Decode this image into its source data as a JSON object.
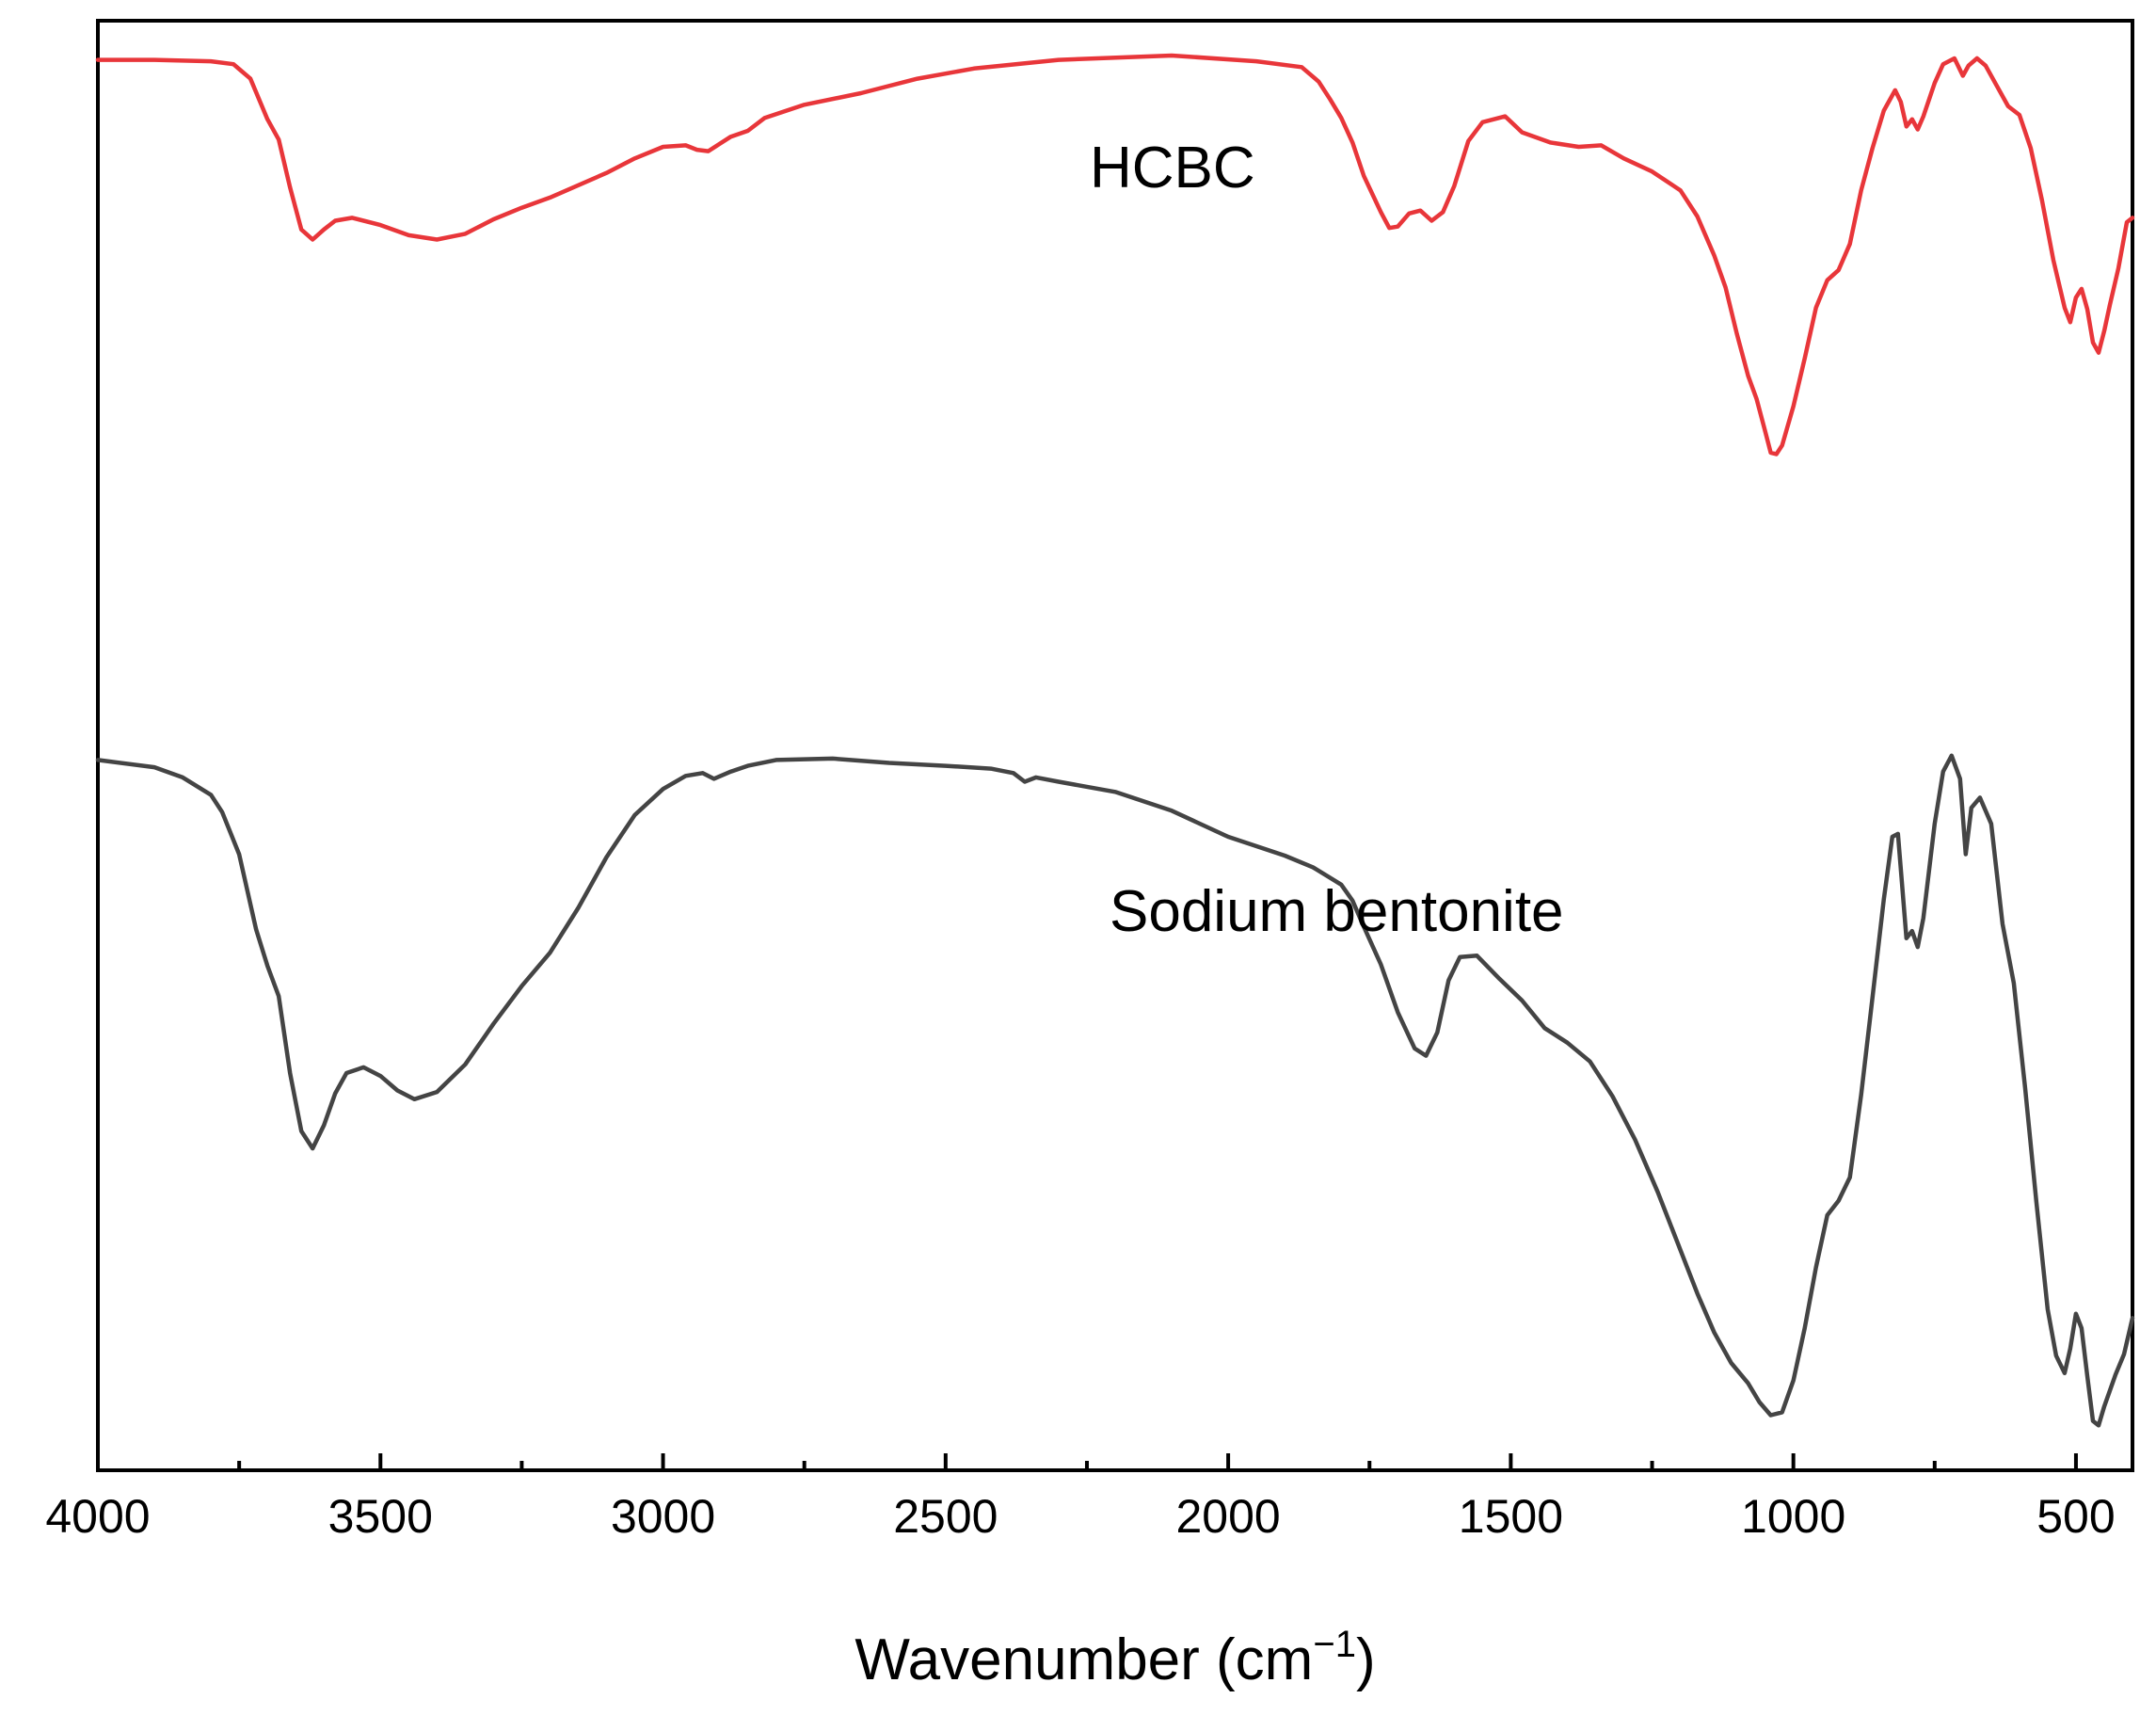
{
  "chart_data": {
    "type": "line",
    "xlabel": "Wavenumber (cm",
    "xlabel_superscript": "−1",
    "xlabel_suffix": ")",
    "ylabel": "",
    "xlim": [
      4000,
      400
    ],
    "x_reversed": true,
    "ylim": [
      0,
      100
    ],
    "y_ticks_visible": false,
    "grid": false,
    "legend": "none",
    "x_ticks": [
      4000,
      3500,
      3000,
      2500,
      2000,
      1500,
      1000,
      500
    ],
    "x_tick_labels": [
      "4000",
      "3500",
      "3000",
      "2500",
      "2000",
      "1500",
      "1000",
      "500"
    ],
    "x_minor_ticks": [
      3750,
      3250,
      2750,
      2250,
      1750,
      1250,
      750
    ],
    "series": [
      {
        "name": "HCBC",
        "color": "#e8363a",
        "points": [
          [
            4000,
            97.3
          ],
          [
            3900,
            97.3
          ],
          [
            3800,
            97.2
          ],
          [
            3760,
            97.0
          ],
          [
            3730,
            96.0
          ],
          [
            3700,
            93.2
          ],
          [
            3680,
            91.8
          ],
          [
            3660,
            88.5
          ],
          [
            3640,
            85.6
          ],
          [
            3620,
            84.9
          ],
          [
            3600,
            85.6
          ],
          [
            3580,
            86.2
          ],
          [
            3550,
            86.4
          ],
          [
            3500,
            85.9
          ],
          [
            3450,
            85.2
          ],
          [
            3400,
            84.9
          ],
          [
            3350,
            85.3
          ],
          [
            3300,
            86.3
          ],
          [
            3250,
            87.1
          ],
          [
            3200,
            87.8
          ],
          [
            3100,
            89.5
          ],
          [
            3050,
            90.5
          ],
          [
            3000,
            91.3
          ],
          [
            2960,
            91.4
          ],
          [
            2940,
            91.1
          ],
          [
            2920,
            91.0
          ],
          [
            2900,
            91.5
          ],
          [
            2880,
            92.0
          ],
          [
            2850,
            92.4
          ],
          [
            2820,
            93.3
          ],
          [
            2750,
            94.2
          ],
          [
            2650,
            95.0
          ],
          [
            2550,
            96.0
          ],
          [
            2450,
            96.7
          ],
          [
            2300,
            97.3
          ],
          [
            2100,
            97.6
          ],
          [
            1950,
            97.2
          ],
          [
            1870,
            96.8
          ],
          [
            1840,
            95.8
          ],
          [
            1820,
            94.6
          ],
          [
            1800,
            93.3
          ],
          [
            1780,
            91.6
          ],
          [
            1760,
            89.3
          ],
          [
            1730,
            86.8
          ],
          [
            1715,
            85.7
          ],
          [
            1700,
            85.8
          ],
          [
            1680,
            86.7
          ],
          [
            1660,
            86.9
          ],
          [
            1640,
            86.2
          ],
          [
            1620,
            86.8
          ],
          [
            1600,
            88.6
          ],
          [
            1575,
            91.7
          ],
          [
            1550,
            93.0
          ],
          [
            1510,
            93.4
          ],
          [
            1480,
            92.3
          ],
          [
            1430,
            91.6
          ],
          [
            1380,
            91.3
          ],
          [
            1340,
            91.4
          ],
          [
            1300,
            90.5
          ],
          [
            1250,
            89.6
          ],
          [
            1200,
            88.3
          ],
          [
            1170,
            86.5
          ],
          [
            1140,
            83.8
          ],
          [
            1120,
            81.6
          ],
          [
            1100,
            78.4
          ],
          [
            1080,
            75.5
          ],
          [
            1065,
            73.9
          ],
          [
            1050,
            71.7
          ],
          [
            1040,
            70.2
          ],
          [
            1030,
            70.1
          ],
          [
            1020,
            70.7
          ],
          [
            1000,
            73.4
          ],
          [
            980,
            76.7
          ],
          [
            960,
            80.2
          ],
          [
            940,
            82.1
          ],
          [
            920,
            82.8
          ],
          [
            900,
            84.6
          ],
          [
            880,
            88.3
          ],
          [
            860,
            91.2
          ],
          [
            840,
            93.8
          ],
          [
            820,
            95.2
          ],
          [
            810,
            94.4
          ],
          [
            800,
            92.7
          ],
          [
            790,
            93.2
          ],
          [
            780,
            92.5
          ],
          [
            770,
            93.4
          ],
          [
            750,
            95.7
          ],
          [
            735,
            97.0
          ],
          [
            715,
            97.4
          ],
          [
            700,
            96.2
          ],
          [
            690,
            96.9
          ],
          [
            675,
            97.4
          ],
          [
            660,
            96.9
          ],
          [
            640,
            95.5
          ],
          [
            620,
            94.1
          ],
          [
            600,
            93.5
          ],
          [
            580,
            91.2
          ],
          [
            560,
            87.6
          ],
          [
            540,
            83.5
          ],
          [
            520,
            80.2
          ],
          [
            510,
            79.2
          ],
          [
            500,
            80.9
          ],
          [
            490,
            81.5
          ],
          [
            480,
            80.1
          ],
          [
            470,
            77.8
          ],
          [
            460,
            77.1
          ],
          [
            450,
            78.6
          ],
          [
            440,
            80.4
          ],
          [
            425,
            82.9
          ],
          [
            410,
            86.1
          ],
          [
            400,
            86.4
          ]
        ]
      },
      {
        "name": "Sodium bentonite",
        "color": "#444444",
        "points": [
          [
            4000,
            49.0
          ],
          [
            3900,
            48.5
          ],
          [
            3850,
            47.8
          ],
          [
            3800,
            46.6
          ],
          [
            3780,
            45.4
          ],
          [
            3750,
            42.5
          ],
          [
            3720,
            37.3
          ],
          [
            3700,
            34.8
          ],
          [
            3680,
            32.7
          ],
          [
            3660,
            27.4
          ],
          [
            3640,
            23.4
          ],
          [
            3620,
            22.2
          ],
          [
            3600,
            23.8
          ],
          [
            3580,
            26.0
          ],
          [
            3560,
            27.4
          ],
          [
            3530,
            27.8
          ],
          [
            3500,
            27.2
          ],
          [
            3470,
            26.2
          ],
          [
            3440,
            25.6
          ],
          [
            3400,
            26.1
          ],
          [
            3350,
            28.0
          ],
          [
            3300,
            30.8
          ],
          [
            3250,
            33.4
          ],
          [
            3200,
            35.7
          ],
          [
            3150,
            38.8
          ],
          [
            3100,
            42.3
          ],
          [
            3050,
            45.2
          ],
          [
            3000,
            47.0
          ],
          [
            2960,
            47.9
          ],
          [
            2930,
            48.1
          ],
          [
            2910,
            47.7
          ],
          [
            2880,
            48.2
          ],
          [
            2850,
            48.6
          ],
          [
            2800,
            49.0
          ],
          [
            2700,
            49.1
          ],
          [
            2600,
            48.8
          ],
          [
            2500,
            48.6
          ],
          [
            2420,
            48.4
          ],
          [
            2380,
            48.1
          ],
          [
            2360,
            47.5
          ],
          [
            2340,
            47.8
          ],
          [
            2300,
            47.5
          ],
          [
            2200,
            46.8
          ],
          [
            2100,
            45.5
          ],
          [
            2000,
            43.7
          ],
          [
            1900,
            42.4
          ],
          [
            1850,
            41.6
          ],
          [
            1800,
            40.4
          ],
          [
            1780,
            39.3
          ],
          [
            1760,
            37.5
          ],
          [
            1730,
            34.9
          ],
          [
            1700,
            31.6
          ],
          [
            1670,
            29.1
          ],
          [
            1650,
            28.6
          ],
          [
            1630,
            30.2
          ],
          [
            1610,
            33.8
          ],
          [
            1590,
            35.4
          ],
          [
            1560,
            35.5
          ],
          [
            1520,
            33.9
          ],
          [
            1480,
            32.4
          ],
          [
            1440,
            30.5
          ],
          [
            1400,
            29.5
          ],
          [
            1360,
            28.2
          ],
          [
            1320,
            25.8
          ],
          [
            1280,
            22.8
          ],
          [
            1240,
            19.2
          ],
          [
            1200,
            15.2
          ],
          [
            1170,
            12.2
          ],
          [
            1140,
            9.5
          ],
          [
            1110,
            7.4
          ],
          [
            1080,
            6.0
          ],
          [
            1060,
            4.7
          ],
          [
            1040,
            3.8
          ],
          [
            1020,
            4.0
          ],
          [
            1000,
            6.2
          ],
          [
            980,
            9.8
          ],
          [
            960,
            14.0
          ],
          [
            940,
            17.6
          ],
          [
            920,
            18.6
          ],
          [
            900,
            20.2
          ],
          [
            880,
            25.9
          ],
          [
            860,
            32.6
          ],
          [
            840,
            39.4
          ],
          [
            825,
            43.7
          ],
          [
            815,
            43.9
          ],
          [
            800,
            36.7
          ],
          [
            790,
            37.2
          ],
          [
            780,
            36.1
          ],
          [
            770,
            38.1
          ],
          [
            750,
            44.6
          ],
          [
            735,
            48.2
          ],
          [
            720,
            49.3
          ],
          [
            705,
            47.7
          ],
          [
            695,
            42.5
          ],
          [
            685,
            45.7
          ],
          [
            670,
            46.4
          ],
          [
            650,
            44.6
          ],
          [
            630,
            37.7
          ],
          [
            610,
            33.6
          ],
          [
            590,
            26.4
          ],
          [
            570,
            18.5
          ],
          [
            550,
            11.1
          ],
          [
            535,
            7.9
          ],
          [
            520,
            6.7
          ],
          [
            510,
            8.4
          ],
          [
            500,
            10.8
          ],
          [
            490,
            9.8
          ],
          [
            480,
            6.5
          ],
          [
            470,
            3.4
          ],
          [
            460,
            3.1
          ],
          [
            450,
            4.4
          ],
          [
            430,
            6.6
          ],
          [
            415,
            8.0
          ],
          [
            400,
            10.5
          ]
        ]
      }
    ],
    "series_labels": [
      {
        "text": "HCBC",
        "x": 2245,
        "y": 88.5
      },
      {
        "text": "Sodium bentonite",
        "x": 2210,
        "y": 37.2
      }
    ]
  }
}
